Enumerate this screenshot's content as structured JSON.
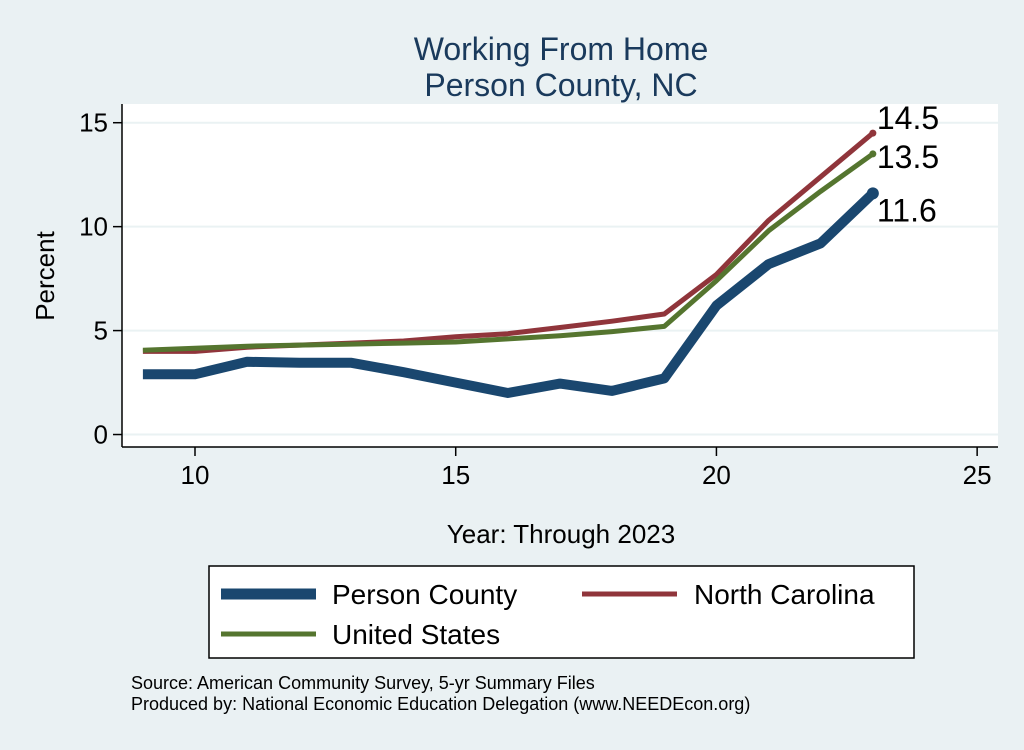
{
  "chart_data": {
    "type": "line",
    "title": "Working From Home",
    "subtitle": "Person County, NC",
    "xlabel": "Year: Through 2023",
    "ylabel": "Percent",
    "xlim": [
      8.6,
      25.4
    ],
    "ylim": [
      -0.6,
      15.9
    ],
    "x_ticks": [
      10,
      15,
      20,
      25
    ],
    "y_ticks": [
      0,
      5,
      10,
      15
    ],
    "grid": true,
    "legend_position": "bottom",
    "x": [
      9,
      10,
      11,
      12,
      13,
      14,
      15,
      16,
      17,
      18,
      19,
      20,
      21,
      22,
      23
    ],
    "series": [
      {
        "name": "Person County",
        "color": "#1a476f",
        "values": [
          2.9,
          2.9,
          3.5,
          3.45,
          3.45,
          3.0,
          2.5,
          2.0,
          2.45,
          2.1,
          2.7,
          6.2,
          8.2,
          9.2,
          11.6
        ]
      },
      {
        "name": "North Carolina",
        "color": "#90353b",
        "values": [
          4.0,
          4.0,
          4.2,
          4.3,
          4.4,
          4.5,
          4.7,
          4.85,
          5.15,
          5.45,
          5.8,
          7.7,
          10.3,
          12.4,
          14.5
        ]
      },
      {
        "name": "United States",
        "color": "#55752f",
        "values": [
          4.05,
          4.15,
          4.25,
          4.3,
          4.35,
          4.4,
          4.45,
          4.6,
          4.75,
          4.95,
          5.2,
          7.4,
          9.8,
          11.7,
          13.5
        ]
      }
    ],
    "end_labels": [
      {
        "series": "North Carolina",
        "text": "14.5"
      },
      {
        "series": "United States",
        "text": "13.5"
      },
      {
        "series": "Person County",
        "text": "11.6"
      }
    ]
  },
  "source_line_1": "Source: American Community Survey, 5-yr Summary Files",
  "source_line_2": "Produced by: National Economic Education Delegation (www.NEEDEcon.org)"
}
